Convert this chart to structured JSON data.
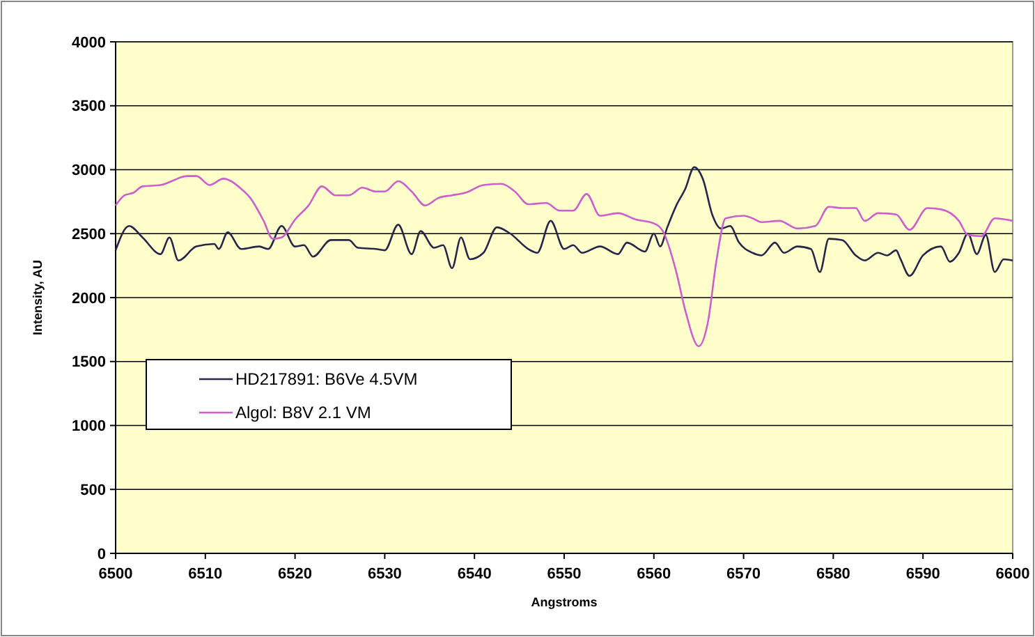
{
  "chart_data": {
    "type": "line",
    "xlabel": "Angstroms",
    "ylabel": "Intensity, AU",
    "xlim": [
      6500,
      6600
    ],
    "xticks": [
      6500,
      6510,
      6520,
      6530,
      6540,
      6550,
      6560,
      6570,
      6580,
      6590,
      6600
    ],
    "ylim": [
      0,
      4000
    ],
    "yticks": [
      0,
      500,
      1000,
      1500,
      2000,
      2500,
      3000,
      3500,
      4000
    ],
    "grid": "y",
    "legend": "left",
    "marker": "none",
    "line_style": "solid",
    "series": [
      {
        "name": "HD217891: B6Ve 4.5VM",
        "color": "#26264a",
        "x": [
          6500,
          6501.5,
          6503,
          6505,
          6506,
          6507,
          6509,
          6511,
          6511.5,
          6512.5,
          6514,
          6516,
          6517,
          6518.5,
          6520,
          6521,
          6522,
          6524,
          6526,
          6527,
          6529,
          6530,
          6531.5,
          6533,
          6534,
          6535.5,
          6536.5,
          6537.5,
          6538.5,
          6539.5,
          6541,
          6542.5,
          6544,
          6546,
          6547,
          6548.5,
          6550,
          6551,
          6552,
          6554,
          6556,
          6557,
          6559,
          6560,
          6560.7,
          6561.5,
          6562.5,
          6563.5,
          6564.5,
          6565.5,
          6566.5,
          6567.5,
          6568.5,
          6569.5,
          6571,
          6572,
          6573.5,
          6574.5,
          6576,
          6577.5,
          6578.5,
          6579.5,
          6581,
          6582.5,
          6583.5,
          6585,
          6586,
          6587,
          6587.5,
          6588.5,
          6590,
          6592,
          6593,
          6594,
          6595,
          6596,
          6597,
          6598,
          6599,
          6600
        ],
        "values": [
          2370,
          2560,
          2470,
          2340,
          2470,
          2290,
          2400,
          2420,
          2380,
          2510,
          2380,
          2400,
          2380,
          2560,
          2400,
          2410,
          2320,
          2450,
          2450,
          2390,
          2380,
          2370,
          2570,
          2340,
          2520,
          2390,
          2410,
          2230,
          2470,
          2300,
          2350,
          2550,
          2500,
          2380,
          2350,
          2600,
          2380,
          2410,
          2350,
          2400,
          2340,
          2430,
          2360,
          2500,
          2400,
          2550,
          2720,
          2850,
          3020,
          2920,
          2650,
          2540,
          2560,
          2430,
          2350,
          2330,
          2430,
          2350,
          2400,
          2380,
          2200,
          2460,
          2450,
          2330,
          2290,
          2350,
          2330,
          2370,
          2300,
          2170,
          2330,
          2400,
          2280,
          2350,
          2500,
          2340,
          2490,
          2200,
          2300,
          2290
        ]
      },
      {
        "name": "Algol: B8V 2.1 VM",
        "color": "#cc5fcc",
        "x": [
          6500,
          6501,
          6502,
          6503,
          6505,
          6508,
          6509,
          6510.5,
          6512,
          6514,
          6515,
          6516.5,
          6517.5,
          6518.5,
          6520,
          6521.5,
          6523,
          6524.5,
          6526,
          6527.5,
          6529,
          6530,
          6531.5,
          6533,
          6534.5,
          6536,
          6537.5,
          6539,
          6541,
          6543,
          6544.5,
          6546,
          6548,
          6549.5,
          6551,
          6552.5,
          6554,
          6556,
          6558,
          6560,
          6561,
          6562.5,
          6563.5,
          6565,
          6566,
          6567,
          6568,
          6570,
          6571,
          6572,
          6574,
          6576,
          6578,
          6579.5,
          6581,
          6582.5,
          6583.5,
          6585,
          6587,
          6588.5,
          6590.5,
          6592,
          6594,
          6595,
          6596.5,
          6598,
          6600
        ],
        "values": [
          2720,
          2800,
          2820,
          2870,
          2880,
          2950,
          2950,
          2880,
          2930,
          2850,
          2780,
          2600,
          2460,
          2470,
          2610,
          2720,
          2870,
          2800,
          2800,
          2860,
          2830,
          2830,
          2910,
          2830,
          2720,
          2780,
          2800,
          2820,
          2880,
          2890,
          2830,
          2730,
          2740,
          2680,
          2680,
          2810,
          2640,
          2660,
          2610,
          2580,
          2520,
          2200,
          1900,
          1620,
          1800,
          2300,
          2620,
          2640,
          2620,
          2590,
          2600,
          2540,
          2560,
          2710,
          2700,
          2700,
          2600,
          2660,
          2650,
          2530,
          2700,
          2690,
          2600,
          2490,
          2480,
          2620,
          2600
        ]
      }
    ]
  }
}
